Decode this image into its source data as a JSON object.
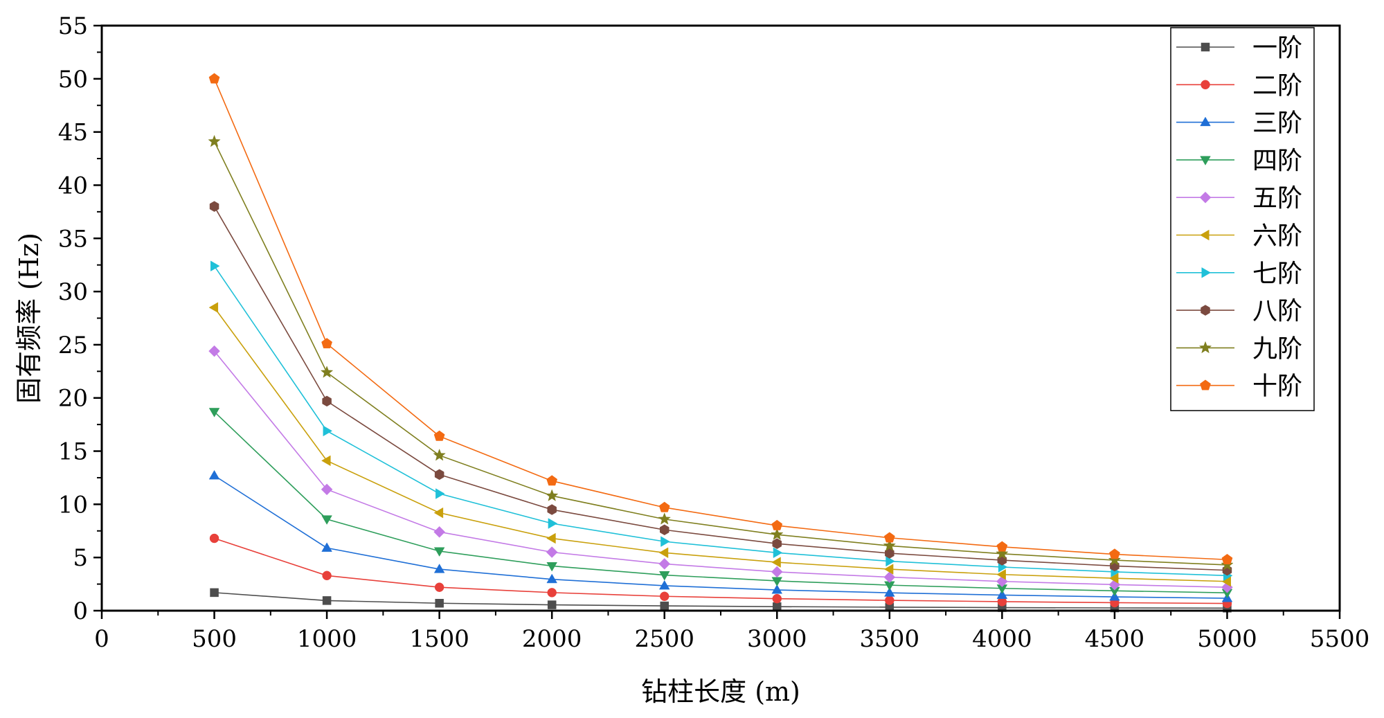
{
  "chart_data": {
    "type": "line",
    "xlabel": "钻柱长度 (m)",
    "ylabel": "固有频率 (Hz)",
    "xlim": [
      0,
      5500
    ],
    "ylim": [
      0,
      55
    ],
    "x_ticks": [
      "0",
      "500",
      "1000",
      "1500",
      "2000",
      "2500",
      "3000",
      "3500",
      "4000",
      "4500",
      "5000",
      "5500"
    ],
    "y_ticks": [
      "0",
      "5",
      "10",
      "15",
      "20",
      "25",
      "30",
      "35",
      "40",
      "45",
      "50",
      "55"
    ],
    "grid": false,
    "legend_position": "top-right",
    "x": [
      500,
      1000,
      1500,
      2000,
      2500,
      3000,
      3500,
      4000,
      4500,
      5000
    ],
    "series": [
      {
        "name": "一阶",
        "color": "#4d4d4d",
        "marker": "square",
        "values": [
          1.7,
          0.95,
          0.7,
          0.55,
          0.45,
          0.38,
          0.33,
          0.29,
          0.26,
          0.24
        ]
      },
      {
        "name": "二阶",
        "color": "#e8403a",
        "marker": "circle",
        "values": [
          6.8,
          3.3,
          2.2,
          1.7,
          1.35,
          1.13,
          0.97,
          0.85,
          0.75,
          0.68
        ]
      },
      {
        "name": "三阶",
        "color": "#1f6fd6",
        "marker": "triangle-up",
        "values": [
          12.7,
          5.9,
          3.9,
          2.95,
          2.35,
          1.95,
          1.68,
          1.47,
          1.3,
          1.17
        ]
      },
      {
        "name": "四阶",
        "color": "#2e9e5b",
        "marker": "triangle-down",
        "values": [
          18.7,
          8.6,
          5.6,
          4.2,
          3.35,
          2.8,
          2.4,
          2.1,
          1.87,
          1.68
        ]
      },
      {
        "name": "五阶",
        "color": "#c37ae6",
        "marker": "diamond",
        "values": [
          24.4,
          11.4,
          7.4,
          5.5,
          4.4,
          3.65,
          3.15,
          2.75,
          2.45,
          2.2
        ]
      },
      {
        "name": "六阶",
        "color": "#c9a00c",
        "marker": "triangle-left",
        "values": [
          28.5,
          14.1,
          9.2,
          6.8,
          5.45,
          4.55,
          3.9,
          3.4,
          3.05,
          2.75
        ]
      },
      {
        "name": "七阶",
        "color": "#1fc0d8",
        "marker": "triangle-right",
        "values": [
          32.4,
          16.9,
          11.0,
          8.2,
          6.5,
          5.45,
          4.65,
          4.1,
          3.65,
          3.3
        ]
      },
      {
        "name": "八阶",
        "color": "#7b4a3f",
        "marker": "hexagon",
        "values": [
          38.0,
          19.7,
          12.8,
          9.5,
          7.6,
          6.3,
          5.4,
          4.75,
          4.2,
          3.8
        ]
      },
      {
        "name": "九阶",
        "color": "#7f7f1f",
        "marker": "star",
        "values": [
          44.1,
          22.4,
          14.6,
          10.8,
          8.6,
          7.15,
          6.1,
          5.35,
          4.75,
          4.3
        ]
      },
      {
        "name": "十阶",
        "color": "#f36a12",
        "marker": "pentagon",
        "values": [
          50.0,
          25.1,
          16.4,
          12.2,
          9.7,
          8.0,
          6.85,
          6.0,
          5.3,
          4.8
        ]
      }
    ]
  }
}
